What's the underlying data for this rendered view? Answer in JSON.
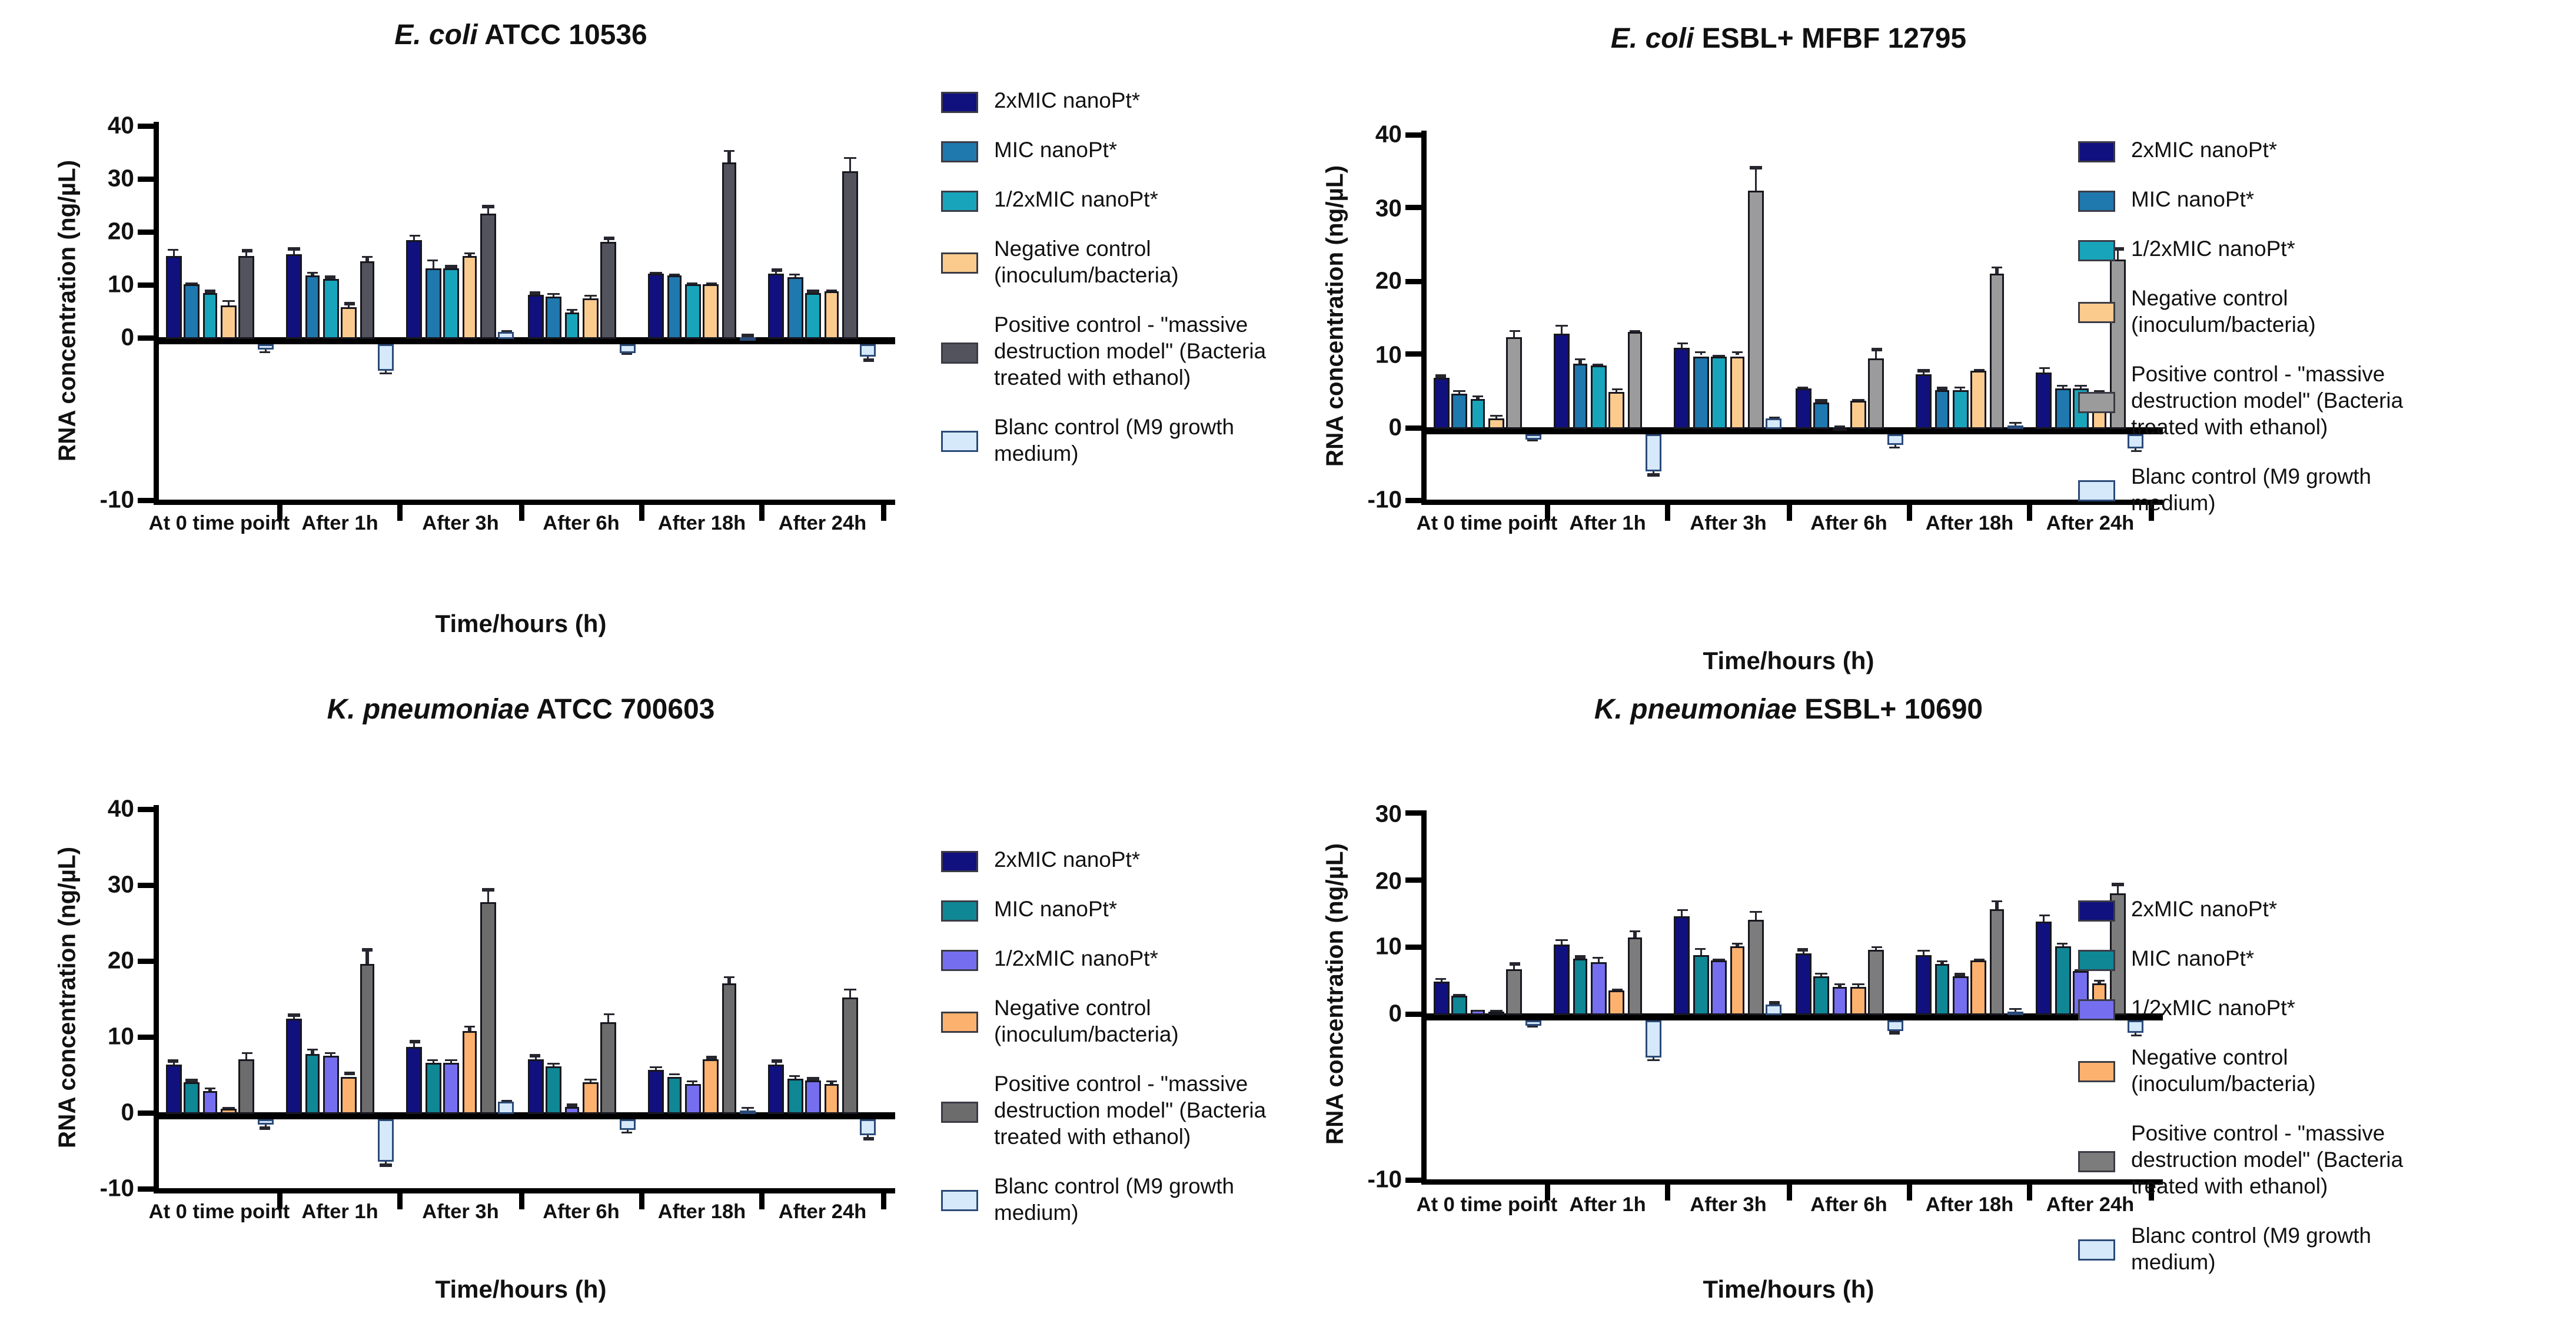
{
  "figure_title": "RNA concentration bar charts for four bacterial strains",
  "shared": {
    "y_axis_label": "RNA concentration (ng/µL)",
    "x_axis_title": "Time/hours (h)",
    "categories": [
      "At 0 time point",
      "After 1h",
      "After 3h",
      "After 6h",
      "After 18h",
      "After 24h"
    ],
    "legend_labels": [
      "2xMIC nanoPt*",
      "MIC nanoPt*",
      "1/2xMIC nanoPt*",
      "Negative control (inoculum/bacteria)",
      "Positive control - \"massive destruction model\" (Bacteria treated with ethanol)",
      "Blanc control (M9 growth medium)"
    ],
    "blanc_color": "#D6E9FA"
  },
  "chart_data": [
    {
      "type": "bar",
      "title_italic": "E. coli",
      "title_rest": " ATCC  10536",
      "ylabel": "RNA concentration (ng/µL)",
      "xlabel": "Time/hours (h)",
      "ylim": [
        -10,
        40
      ],
      "yticks": [
        40,
        30,
        20,
        10,
        0,
        -10
      ],
      "grid": false,
      "legend_position": "right",
      "categories": [
        "At 0 time point",
        "After 1h",
        "After 3h",
        "After 6h",
        "After 18h",
        "After 24h"
      ],
      "series": [
        {
          "name": "2xMIC nanoPt*",
          "color": "#10107E",
          "values": [
            15.6,
            16.0,
            18.6,
            8.2,
            12.2,
            12.3
          ],
          "errors": [
            1.5,
            1.2,
            1.1,
            0.7,
            0.6,
            0.9
          ]
        },
        {
          "name": "MIC nanoPt*",
          "color": "#1F78AE",
          "values": [
            10.3,
            11.9,
            13.4,
            7.9,
            12.0,
            11.7
          ],
          "errors": [
            0.4,
            0.7,
            1.7,
            0.9,
            0.5,
            0.7
          ]
        },
        {
          "name": "1/2xMIC nanoPt*",
          "color": "#18A5BC",
          "values": [
            8.6,
            11.3,
            13.4,
            5.0,
            10.2,
            8.7
          ],
          "errors": [
            0.6,
            0.6,
            0.5,
            0.6,
            0.5,
            0.5
          ]
        },
        {
          "name": "Negative control (inoculum/bacteria)",
          "color": "#FBCB8E",
          "values": [
            6.4,
            6.0,
            15.7,
            7.8,
            10.4,
            8.9
          ],
          "errors": [
            1.0,
            0.9,
            0.8,
            0.7,
            0.4,
            0.4
          ]
        },
        {
          "name": "Positive control - \"massive destruction model\" (Bacteria treated with ethanol)",
          "color": "#53535E",
          "values": [
            15.8,
            14.6,
            23.8,
            18.2,
            33.3,
            31.6
          ],
          "errors": [
            1.1,
            1.2,
            1.4,
            1.0,
            2.3,
            2.7
          ]
        },
        {
          "name": "Blanc control (M9 growth medium)",
          "color": "#D6E9FA",
          "values": [
            -1.2,
            -5.3,
            1.5,
            -1.8,
            0.4,
            -2.6
          ],
          "errors": [
            0.7,
            0.6,
            0.3,
            0.4,
            0.5,
            0.8
          ]
        }
      ]
    },
    {
      "type": "bar",
      "title_italic": "E. coli",
      "title_rest": " ESBL+ MFBF 12795",
      "ylabel": "RNA concentration (ng/µL)",
      "xlabel": "Time/hours (h)",
      "ylim": [
        -10,
        40
      ],
      "yticks": [
        40,
        30,
        20,
        10,
        0,
        -10
      ],
      "grid": false,
      "legend_position": "right",
      "categories": [
        "At 0 time point",
        "After 1h",
        "After 3h",
        "After 6h",
        "After 18h",
        "After 24h"
      ],
      "series": [
        {
          "name": "2xMIC nanoPt*",
          "color": "#10107E",
          "values": [
            7.0,
            13.0,
            11.0,
            5.5,
            7.4,
            7.8
          ],
          "errors": [
            0.4,
            1.3,
            0.9,
            0.4,
            0.7,
            0.6
          ]
        },
        {
          "name": "MIC nanoPt*",
          "color": "#1F78AE",
          "values": [
            4.9,
            8.9,
            10.0,
            3.6,
            5.3,
            5.5
          ],
          "errors": [
            0.5,
            0.7,
            0.6,
            0.4,
            0.4,
            0.5
          ]
        },
        {
          "name": "1/2xMIC nanoPt*",
          "color": "#18A5BC",
          "values": [
            4.1,
            8.6,
            9.8,
            0.3,
            5.4,
            5.6
          ],
          "errors": [
            0.5,
            0.4,
            0.4,
            0.2,
            0.5,
            0.5
          ]
        },
        {
          "name": "Negative control (inoculum/bacteria)",
          "color": "#FBCB8E",
          "values": [
            1.4,
            5.1,
            10.0,
            3.8,
            7.9,
            5.0
          ],
          "errors": [
            0.5,
            0.5,
            0.7,
            0.4,
            0.3,
            0.4
          ]
        },
        {
          "name": "Positive control - \"massive destruction model\" (Bacteria treated with ethanol)",
          "color": "#9B9B9B",
          "values": [
            12.6,
            13.2,
            32.6,
            9.6,
            21.2,
            23.2
          ],
          "errors": [
            0.9,
            0.4,
            3.2,
            1.4,
            1.0,
            1.5
          ]
        },
        {
          "name": "Blanc control (M9 growth medium)",
          "color": "#D6E9FA",
          "values": [
            -0.8,
            -5.2,
            1.5,
            -1.6,
            0.4,
            -2.1
          ],
          "errors": [
            0.4,
            0.6,
            0.3,
            0.5,
            0.6,
            0.5
          ]
        }
      ]
    },
    {
      "type": "bar",
      "title_italic": "K. pneumoniae",
      "title_rest": " ATCC 700603",
      "ylabel": "RNA concentration (ng/µL)",
      "xlabel": "Time/hours (h)",
      "ylim": [
        -10,
        40
      ],
      "yticks": [
        40,
        30,
        20,
        10,
        0,
        -10
      ],
      "grid": false,
      "legend_position": "right",
      "categories": [
        "At 0 time point",
        "After 1h",
        "After 3h",
        "After 6h",
        "After 18h",
        "After 24h"
      ],
      "series": [
        {
          "name": "2xMIC nanoPt*",
          "color": "#10107E",
          "values": [
            6.5,
            12.5,
            8.9,
            7.2,
            5.8,
            6.5
          ],
          "errors": [
            0.6,
            0.7,
            0.8,
            0.6,
            0.5,
            0.6
          ]
        },
        {
          "name": "MIC nanoPt*",
          "color": "#0F8794",
          "values": [
            4.2,
            7.9,
            6.7,
            6.2,
            5.0,
            4.7
          ],
          "errors": [
            0.4,
            0.8,
            0.6,
            0.6,
            0.4,
            0.5
          ]
        },
        {
          "name": "1/2xMIC nanoPt*",
          "color": "#756FF0",
          "values": [
            3.1,
            7.7,
            6.8,
            0.9,
            3.9,
            4.4
          ],
          "errors": [
            0.4,
            0.5,
            0.4,
            0.4,
            0.5,
            0.4
          ]
        },
        {
          "name": "Negative control (inoculum/bacteria)",
          "color": "#FCB26E",
          "values": [
            0.8,
            5.0,
            11.0,
            4.3,
            7.1,
            4.0
          ],
          "errors": [
            0.2,
            0.5,
            0.7,
            0.4,
            0.5,
            0.4
          ]
        },
        {
          "name": "Positive control - \"massive destruction model\" (Bacteria treated with ethanol)",
          "color": "#6C6C6C",
          "values": [
            7.3,
            19.7,
            28.0,
            12.0,
            17.2,
            15.4
          ],
          "errors": [
            0.8,
            2.1,
            1.7,
            1.3,
            1.0,
            1.2
          ]
        },
        {
          "name": "Blanc control (M9 growth medium)",
          "color": "#D6E9FA",
          "values": [
            -0.9,
            -5.6,
            1.6,
            -1.6,
            0.4,
            -2.2
          ],
          "errors": [
            0.5,
            0.7,
            0.3,
            0.4,
            0.6,
            0.6
          ]
        }
      ]
    },
    {
      "type": "bar",
      "title_italic": "K. pneumoniae",
      "title_rest": " ESBL+ 10690",
      "ylabel": "RNA concentration (ng/µL)",
      "xlabel": "Time/hours (h)",
      "ylim": [
        -10,
        30
      ],
      "yticks": [
        30,
        20,
        10,
        0,
        -10
      ],
      "grid": false,
      "legend_position": "right",
      "categories": [
        "At 0 time point",
        "After 1h",
        "After 3h",
        "After 6h",
        "After 18h",
        "After 24h"
      ],
      "series": [
        {
          "name": "2xMIC nanoPt*",
          "color": "#10107E",
          "values": [
            5.0,
            10.6,
            14.8,
            9.2,
            9.0,
            14.1
          ],
          "errors": [
            0.6,
            0.8,
            1.2,
            0.8,
            0.9,
            1.0
          ]
        },
        {
          "name": "MIC nanoPt*",
          "color": "#0F8794",
          "values": [
            2.9,
            8.4,
            9.1,
            5.8,
            7.7,
            10.3
          ],
          "errors": [
            0.4,
            0.5,
            1.1,
            0.6,
            0.6,
            0.6
          ]
        },
        {
          "name": "1/2xMIC nanoPt*",
          "color": "#756FF0",
          "values": [
            0.7,
            8.0,
            8.1,
            4.3,
            5.9,
            6.5
          ],
          "errors": [
            0.2,
            0.7,
            0.5,
            0.5,
            0.4,
            0.5
          ]
        },
        {
          "name": "Negative control (inoculum/bacteria)",
          "color": "#FCB26E",
          "values": [
            0.6,
            3.6,
            10.4,
            4.2,
            8.1,
            4.9
          ],
          "errors": [
            0.2,
            0.4,
            0.5,
            0.6,
            0.5,
            0.5
          ]
        },
        {
          "name": "Positive control - \"massive destruction model\" (Bacteria treated with ethanol)",
          "color": "#7C7C7C",
          "values": [
            7.0,
            11.8,
            14.3,
            9.7,
            16.0,
            18.3
          ],
          "errors": [
            0.9,
            1.0,
            1.3,
            0.7,
            1.3,
            1.5
          ]
        },
        {
          "name": "Blanc control (M9 growth medium)",
          "color": "#D6E9FA",
          "values": [
            -0.9,
            -5.6,
            1.7,
            -1.7,
            0.5,
            -2.1
          ],
          "errors": [
            0.4,
            0.7,
            0.3,
            0.5,
            0.6,
            0.5
          ]
        }
      ]
    }
  ]
}
